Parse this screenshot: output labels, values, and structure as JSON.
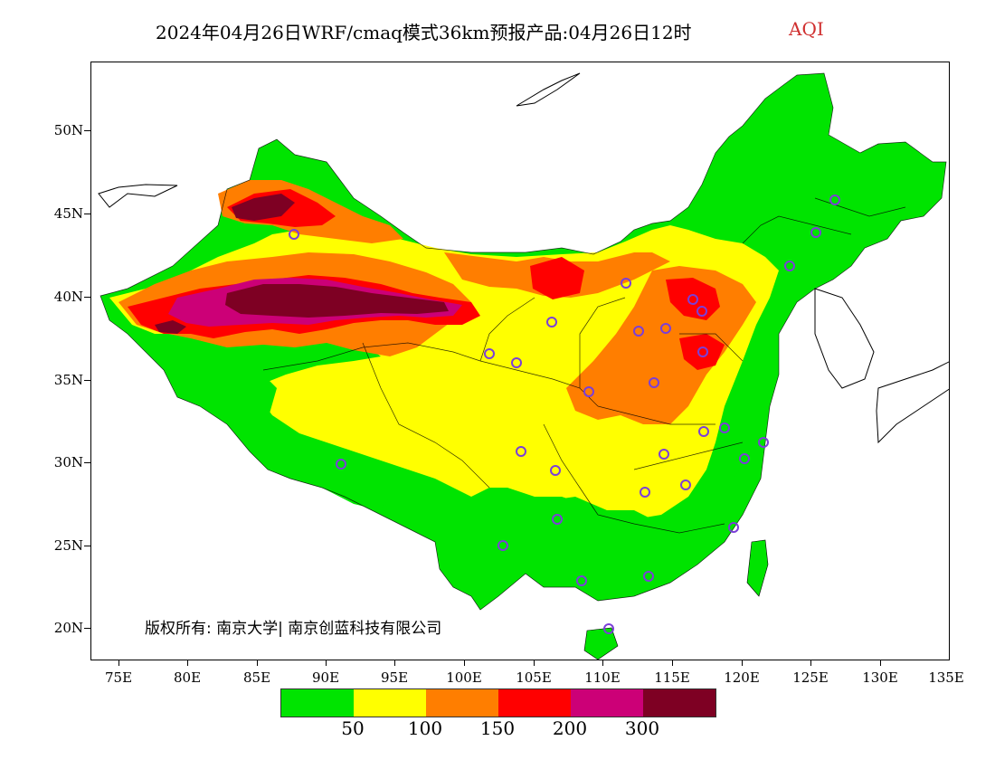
{
  "title": "2024年04月26日WRF/cmaq模式36km预报产品:04月26日12时",
  "variable": "AQI",
  "copyright": "版权所有: 南京大学| 南京创蓝科技有限公司",
  "axes": {
    "y_labels": [
      "50N",
      "45N",
      "40N",
      "35N",
      "30N",
      "25N",
      "20N"
    ],
    "x_labels": [
      "75E",
      "80E",
      "85E",
      "90E",
      "95E",
      "100E",
      "105E",
      "110E",
      "115E",
      "120E",
      "125E",
      "130E",
      "135E"
    ]
  },
  "legend": {
    "colors": [
      "#00e400",
      "#ffff00",
      "#ff7e00",
      "#ff0000",
      "#cc0077",
      "#7e0023"
    ],
    "labels": [
      "50",
      "100",
      "150",
      "200",
      "300"
    ]
  },
  "colors": {
    "water": "#ffffff",
    "border": "#000000",
    "station": "#7b3fd8"
  }
}
